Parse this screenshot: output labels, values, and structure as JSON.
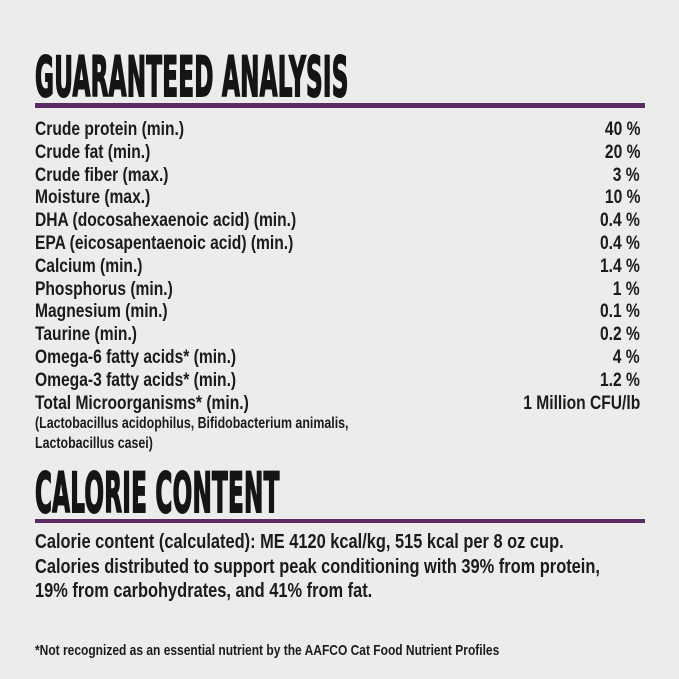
{
  "page": {
    "background_color": "#ececeb",
    "accent_color": "#5c2a64",
    "text_color": "#1b1b1b"
  },
  "guaranteed_analysis": {
    "title": "GUARANTEED ANALYSIS",
    "rows": [
      {
        "label": "Crude protein (min.)",
        "value": "40 %"
      },
      {
        "label": "Crude fat (min.)",
        "value": "20 %"
      },
      {
        "label": "Crude fiber (max.)",
        "value": "3 %"
      },
      {
        "label": "Moisture (max.)",
        "value": "10 %"
      },
      {
        "label": "DHA (docosahexaenoic acid) (min.)",
        "value": "0.4 %"
      },
      {
        "label": "EPA (eicosapentaenoic acid) (min.)",
        "value": "0.4 %"
      },
      {
        "label": "Calcium (min.)",
        "value": "1.4 %"
      },
      {
        "label": "Phosphorus (min.)",
        "value": "1 %"
      },
      {
        "label": "Magnesium (min.)",
        "value": "0.1 %"
      },
      {
        "label": "Taurine (min.)",
        "value": "0.2 %"
      },
      {
        "label": "Omega-6 fatty acids* (min.)",
        "value": "4 %"
      },
      {
        "label": "Omega-3 fatty acids* (min.)",
        "value": "1.2 %"
      },
      {
        "label": "Total Microorganisms* (min.)",
        "value": "1 Million CFU/lb"
      }
    ],
    "microorganisms_note_lines": [
      "(Lactobacillus acidophilus, Bifidobacterium animalis,",
      "Lactobacillus casei)"
    ]
  },
  "calorie_content": {
    "title": "CALORIE CONTENT",
    "lines": [
      "Calorie content (calculated): ME 4120 kcal/kg, 515 kcal per 8 oz cup.",
      "Calories distributed to support peak conditioning with 39% from protein,",
      "19% from carbohydrates, and 41% from fat."
    ]
  },
  "footnote": "*Not recognized as an essential nutrient by the AAFCO Cat Food Nutrient Profiles"
}
